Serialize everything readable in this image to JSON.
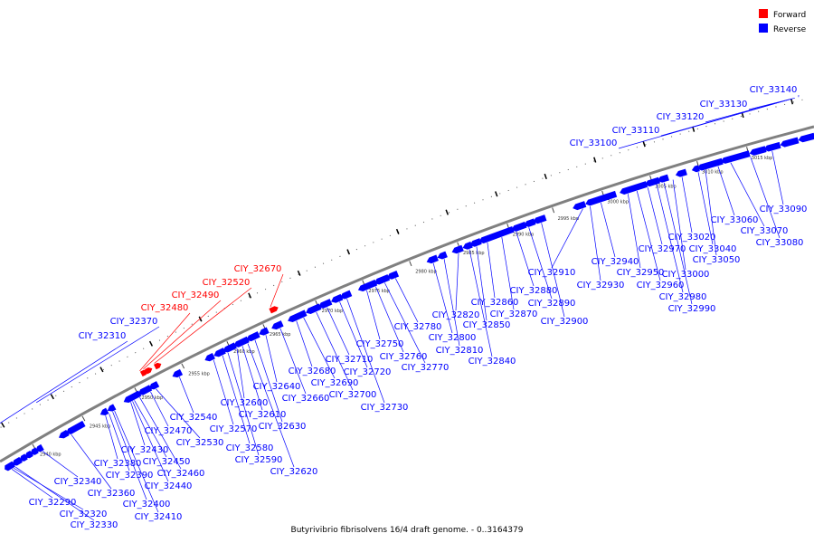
{
  "title": "Butyrivibrio fibrisolvens 16/4 draft genome. - 0..3164379",
  "legend": [
    {
      "label": "Forward",
      "color": "#ff0000"
    },
    {
      "label": "Reverse",
      "color": "#0000ff"
    }
  ],
  "colors": {
    "forward": "#ff0000",
    "reverse": "#0000ff",
    "backbone": "#808080",
    "leader": "#0000ff"
  },
  "ticks": [
    "2940 kbp",
    "2945 kbp",
    "2950 kbp",
    "2955 kbp",
    "2960 kbp",
    "2965 kbp",
    "2970 kbp",
    "2975 kbp",
    "2980 kbp",
    "2985 kbp",
    "2990 kbp",
    "2995 kbp",
    "3000 kbp",
    "3005 kbp",
    "3010 kbp",
    "3015 kbp"
  ],
  "inner_genes": [
    {
      "name": "CIY_32290",
      "strand": "reverse"
    },
    {
      "name": "CIY_32320",
      "strand": "reverse"
    },
    {
      "name": "CIY_32330",
      "strand": "reverse"
    },
    {
      "name": "CIY_32340",
      "strand": "reverse"
    },
    {
      "name": "CIY_32360",
      "strand": "reverse"
    },
    {
      "name": "CIY_32380",
      "strand": "reverse"
    },
    {
      "name": "CIY_32390",
      "strand": "reverse"
    },
    {
      "name": "CIY_32400",
      "strand": "reverse"
    },
    {
      "name": "CIY_32410",
      "strand": "reverse"
    },
    {
      "name": "CIY_32430",
      "strand": "reverse"
    },
    {
      "name": "CIY_32440",
      "strand": "reverse"
    },
    {
      "name": "CIY_32450",
      "strand": "reverse"
    },
    {
      "name": "CIY_32460",
      "strand": "reverse"
    },
    {
      "name": "CIY_32470",
      "strand": "reverse"
    },
    {
      "name": "CIY_32530",
      "strand": "reverse"
    },
    {
      "name": "CIY_32540",
      "strand": "reverse"
    },
    {
      "name": "CIY_32570",
      "strand": "reverse"
    },
    {
      "name": "CIY_32580",
      "strand": "reverse"
    },
    {
      "name": "CIY_32590",
      "strand": "reverse"
    },
    {
      "name": "CIY_32600",
      "strand": "reverse"
    },
    {
      "name": "CIY_32610",
      "strand": "reverse"
    },
    {
      "name": "CIY_32620",
      "strand": "reverse"
    },
    {
      "name": "CIY_32630",
      "strand": "reverse"
    },
    {
      "name": "CIY_32640",
      "strand": "reverse"
    },
    {
      "name": "CIY_32660",
      "strand": "reverse"
    },
    {
      "name": "CIY_32680",
      "strand": "reverse"
    },
    {
      "name": "CIY_32690",
      "strand": "reverse"
    },
    {
      "name": "CIY_32700",
      "strand": "reverse"
    },
    {
      "name": "CIY_32710",
      "strand": "reverse"
    },
    {
      "name": "CIY_32720",
      "strand": "reverse"
    },
    {
      "name": "CIY_32730",
      "strand": "reverse"
    },
    {
      "name": "CIY_32750",
      "strand": "reverse"
    },
    {
      "name": "CIY_32760",
      "strand": "reverse"
    },
    {
      "name": "CIY_32770",
      "strand": "reverse"
    },
    {
      "name": "CIY_32780",
      "strand": "reverse"
    },
    {
      "name": "CIY_32800",
      "strand": "reverse"
    },
    {
      "name": "CIY_32810",
      "strand": "reverse"
    },
    {
      "name": "CIY_32820",
      "strand": "reverse"
    },
    {
      "name": "CIY_32840",
      "strand": "reverse"
    },
    {
      "name": "CIY_32850",
      "strand": "reverse"
    },
    {
      "name": "CIY_32860",
      "strand": "reverse"
    },
    {
      "name": "CIY_32870",
      "strand": "reverse"
    },
    {
      "name": "CIY_32880",
      "strand": "reverse"
    },
    {
      "name": "CIY_32890",
      "strand": "reverse"
    },
    {
      "name": "CIY_32900",
      "strand": "reverse"
    },
    {
      "name": "CIY_32910",
      "strand": "reverse"
    },
    {
      "name": "CIY_32930",
      "strand": "reverse"
    },
    {
      "name": "CIY_32940",
      "strand": "reverse"
    },
    {
      "name": "CIY_32950",
      "strand": "reverse"
    },
    {
      "name": "CIY_32960",
      "strand": "reverse"
    },
    {
      "name": "CIY_32970",
      "strand": "reverse"
    },
    {
      "name": "CIY_32980",
      "strand": "reverse"
    },
    {
      "name": "CIY_32990",
      "strand": "reverse"
    },
    {
      "name": "CIY_33000",
      "strand": "reverse"
    },
    {
      "name": "CIY_33020",
      "strand": "reverse"
    },
    {
      "name": "CIY_33040",
      "strand": "reverse"
    },
    {
      "name": "CIY_33050",
      "strand": "reverse"
    },
    {
      "name": "CIY_33060",
      "strand": "reverse"
    },
    {
      "name": "CIY_33070",
      "strand": "reverse"
    },
    {
      "name": "CIY_33080",
      "strand": "reverse"
    },
    {
      "name": "CIY_33090",
      "strand": "reverse"
    }
  ],
  "outer_genes": [
    {
      "name": "CIY_32310",
      "strand": "reverse"
    },
    {
      "name": "CIY_32370",
      "strand": "reverse"
    },
    {
      "name": "CIY_32480",
      "strand": "forward"
    },
    {
      "name": "CIY_32490",
      "strand": "forward"
    },
    {
      "name": "CIY_32520",
      "strand": "forward"
    },
    {
      "name": "CIY_32670",
      "strand": "forward"
    },
    {
      "name": "CIY_33100",
      "strand": "reverse"
    },
    {
      "name": "CIY_33110",
      "strand": "reverse"
    },
    {
      "name": "CIY_33120",
      "strand": "reverse"
    },
    {
      "name": "CIY_33130",
      "strand": "reverse"
    },
    {
      "name": "CIY_33140",
      "strand": "reverse"
    }
  ]
}
